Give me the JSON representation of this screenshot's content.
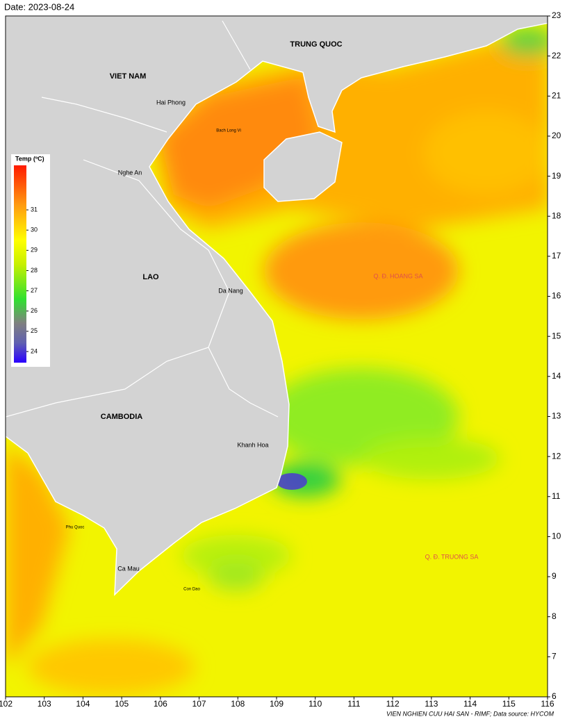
{
  "map": {
    "title": "Date: 2023-08-24",
    "credit": "VIEN NGHIEN CUU HAI SAN - RIMF; Data source: HYCOM",
    "xlim": [
      102,
      116
    ],
    "ylim": [
      6,
      23
    ],
    "xticks": [
      102,
      103,
      104,
      105,
      106,
      107,
      108,
      109,
      110,
      111,
      112,
      113,
      114,
      115,
      116
    ],
    "yticks": [
      6,
      7,
      8,
      9,
      10,
      11,
      12,
      13,
      14,
      15,
      16,
      17,
      18,
      19,
      20,
      21,
      22,
      23
    ],
    "colorbar": {
      "title": "Temp (ºC)",
      "clim": [
        23.45,
        33.2
      ],
      "ticks": [
        24,
        25,
        26,
        27,
        28,
        29,
        30,
        31
      ]
    },
    "labels": [
      "TRUNG QUOC",
      "VIET NAM",
      "Hai Phong",
      "Bach Long Vi",
      "Nghe An",
      "LAO",
      "Da Nang",
      "Q. Đ. HOANG SA",
      "CAMBODIA",
      "Khanh Hoa",
      "Phu Quoc",
      "Ca Mau",
      "Con Dao",
      "Q. Đ. TRUONG SA"
    ]
  }
}
